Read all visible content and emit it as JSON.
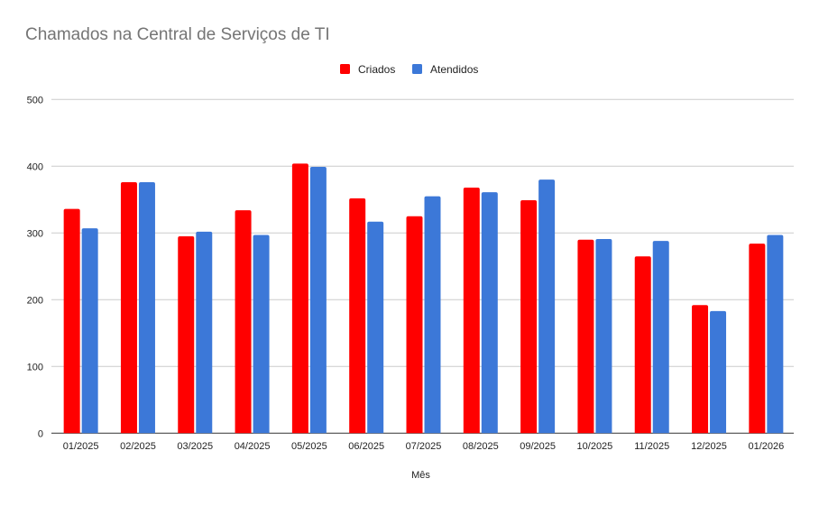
{
  "chart_data": {
    "type": "bar",
    "title": "Chamados na Central de Serviços de TI",
    "xlabel": "Mês",
    "ylabel": "",
    "ylim": [
      0,
      500
    ],
    "yticks": [
      0,
      100,
      200,
      300,
      400,
      500
    ],
    "grid": true,
    "legend_position": "top",
    "categories": [
      "01/2025",
      "02/2025",
      "03/2025",
      "04/2025",
      "05/2025",
      "06/2025",
      "07/2025",
      "08/2025",
      "09/2025",
      "10/2025",
      "11/2025",
      "12/2025",
      "01/2026"
    ],
    "series": [
      {
        "name": "Criados",
        "color": "#ff0000",
        "values": [
          336,
          376,
          295,
          334,
          404,
          352,
          325,
          368,
          349,
          290,
          265,
          192,
          284
        ]
      },
      {
        "name": "Atendidos",
        "color": "#3c78d8",
        "values": [
          307,
          376,
          302,
          297,
          399,
          317,
          355,
          361,
          380,
          291,
          288,
          183,
          297
        ]
      }
    ]
  }
}
